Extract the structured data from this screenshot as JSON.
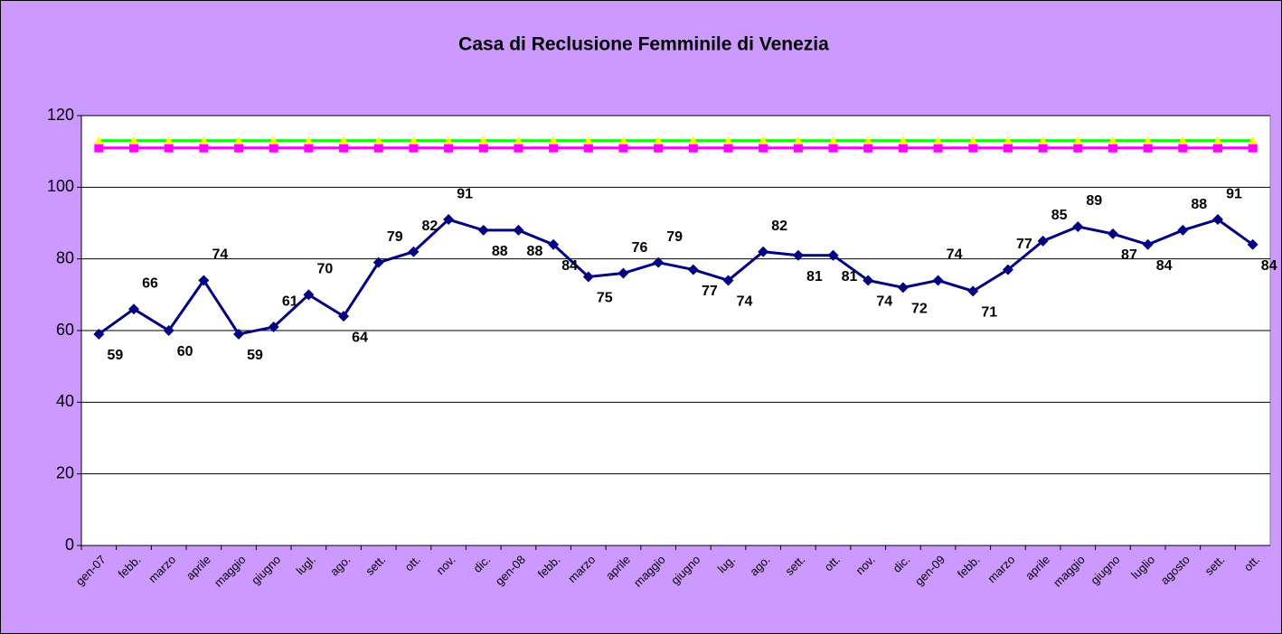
{
  "chart_data": {
    "type": "line",
    "title": "Casa di Reclusione Femminile di Venezia",
    "categories": [
      "gen-07",
      "febb.",
      "marzo",
      "aprile",
      "maggio",
      "giugno",
      "lugl.",
      "ago.",
      "sett.",
      "ott.",
      "nov.",
      "dic.",
      "gen-08",
      "febb.",
      "marzo",
      "aprile",
      "maggio",
      "giugno",
      "lug.",
      "ago.",
      "sett.",
      "ott.",
      "nov.",
      "dic.",
      "gen-09",
      "febb.",
      "marzo",
      "aprile",
      "maggio",
      "giugno",
      "luglio",
      "agosto",
      "sett.",
      "ott."
    ],
    "series": [
      {
        "color": "#ff00ff",
        "marker": "square",
        "values": [
          111,
          111,
          111,
          111,
          111,
          111,
          111,
          111,
          111,
          111,
          111,
          111,
          111,
          111,
          111,
          111,
          111,
          111,
          111,
          111,
          111,
          111,
          111,
          111,
          111,
          111,
          111,
          111,
          111,
          111,
          111,
          111,
          111,
          111
        ]
      },
      {
        "color": "#00ff00",
        "marker_color": "#ffff00",
        "marker": "triangle",
        "values": [
          113,
          113,
          113,
          113,
          113,
          113,
          113,
          113,
          113,
          113,
          113,
          113,
          113,
          113,
          113,
          113,
          113,
          113,
          113,
          113,
          113,
          113,
          113,
          113,
          113,
          113,
          113,
          113,
          113,
          113,
          113,
          113,
          113,
          113
        ]
      },
      {
        "color": "#000080",
        "marker": "diamond",
        "data_labels": true,
        "values": [
          59,
          66,
          60,
          74,
          59,
          61,
          70,
          64,
          79,
          82,
          91,
          88,
          88,
          84,
          75,
          76,
          79,
          77,
          74,
          82,
          81,
          81,
          74,
          72,
          74,
          71,
          77,
          85,
          89,
          87,
          84,
          88,
          91,
          84
        ]
      }
    ],
    "ylim": [
      0,
      120
    ],
    "yticks": [
      0,
      20,
      40,
      60,
      80,
      100,
      120
    ],
    "grid": true
  }
}
